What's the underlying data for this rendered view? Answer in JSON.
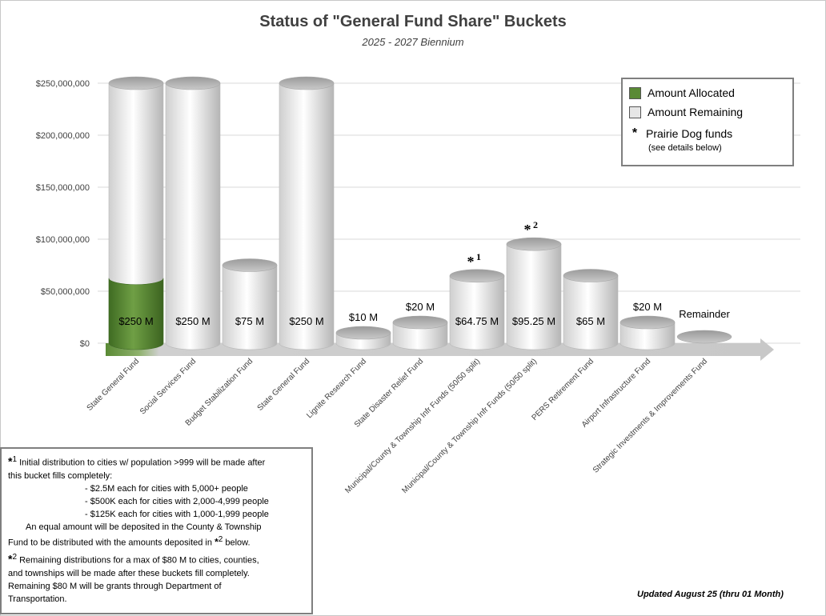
{
  "chart_data": {
    "type": "bar",
    "title": "Status of \"General Fund Share\" Buckets",
    "subtitle": "2025 - 2027 Biennium",
    "ylim": [
      0,
      250000000
    ],
    "y_ticks": [
      "$0",
      "$50,000,000",
      "$100,000,000",
      "$150,000,000",
      "$200,000,000",
      "$250,000,000"
    ],
    "y_tick_values": [
      0,
      50000000,
      100000000,
      150000000,
      200000000,
      250000000
    ],
    "categories": [
      "State General Fund",
      "Social Services Fund",
      "Budget Stabilization Fund",
      "State General Fund",
      "Lignite Research Fund",
      "State Disaster Relief Fund",
      "Municipal/County & Township Infr Funds (50/50 split)",
      "Municipal/County & Township Infr Funds (50/50 split)",
      "PERS Retirement Fund",
      "Airport Infrastructure Fund",
      "Strategic Investments & Improvements Fund"
    ],
    "series": [
      {
        "name": "Amount Allocated",
        "color": "#5a8a35",
        "values": [
          62500000,
          0,
          0,
          0,
          0,
          0,
          0,
          0,
          0,
          0,
          0
        ]
      },
      {
        "name": "Amount Remaining",
        "color": "#e6e6e6",
        "values": [
          187500000,
          250000000,
          75000000,
          250000000,
          10000000,
          20000000,
          64750000,
          95250000,
          65000000,
          20000000,
          0
        ]
      }
    ],
    "capacities": [
      250000000,
      250000000,
      75000000,
      250000000,
      10000000,
      20000000,
      64750000,
      95250000,
      65000000,
      20000000,
      0
    ],
    "bar_labels": [
      "$250 M",
      "$250 M",
      "$75 M",
      "$250 M",
      "$10 M",
      "$20 M",
      "$64.75 M",
      "$95.25 M",
      "$65 M",
      "$20 M",
      "Remainder"
    ],
    "bar_label_inside": [
      true,
      true,
      true,
      true,
      false,
      false,
      true,
      true,
      true,
      false,
      false
    ],
    "prairie_dog_marks": [
      {
        "index": 6,
        "mark": "*",
        "sup": "1"
      },
      {
        "index": 7,
        "mark": "*",
        "sup": "2"
      }
    ],
    "grid": true,
    "legend_position": "top-right"
  },
  "legend": {
    "allocated": "Amount Allocated",
    "remaining": "Amount Remaining",
    "prairie_symbol": "*",
    "prairie": "Prairie Dog funds",
    "prairie_note": "(see details below)"
  },
  "notes": {
    "n1_mark": "*",
    "n1_sup": "1",
    "n1_text": " Initial distribution to cities w/ population >999 will be made after",
    "n1_line2": "this bucket fills completely:",
    "bullet1": "- $2.5M each for cities with 5,000+ people",
    "bullet2": "- $500K each for cities with 2,000-4,999 people",
    "bullet3": "- $125K each for cities with 1,000-1,999 people",
    "n1_line3": "An equal amount will be deposited in the County & Township",
    "n1_line4a": "Fund to be distributed with the amounts deposited in ",
    "n1_line4_mark": "*",
    "n1_line4_sup": "2",
    "n1_line4b": " below.",
    "n2_mark": "*",
    "n2_sup": "2",
    "n2_text": " Remaining distributions for a max of $80 M to cities, counties,",
    "n2_line2": "and townships will be made after these buckets fill completely.",
    "n2_line3": "Remaining $80 M will be grants through Department of",
    "n2_line4": "Transportation."
  },
  "updated": "Updated August 25 (thru 01 Month)"
}
